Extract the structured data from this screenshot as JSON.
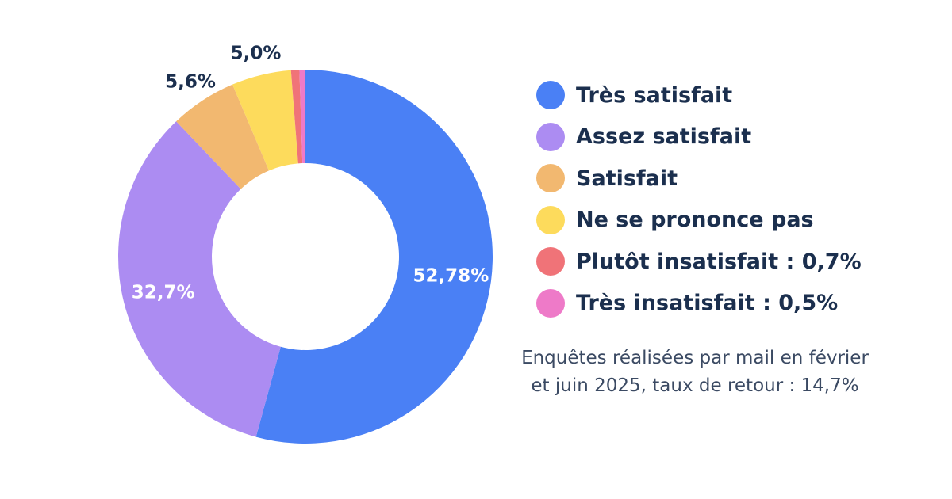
{
  "chart_data": {
    "type": "pie",
    "variant": "donut",
    "title": "",
    "slices": [
      {
        "label": "Très satisfait",
        "value": 52.78,
        "data_label": "52,78%",
        "color": "#4a80f5",
        "label_text_color": "#ffffff"
      },
      {
        "label": "Assez satisfait",
        "value": 32.7,
        "data_label": "32,7%",
        "color": "#ac8cf2",
        "label_text_color": "#ffffff"
      },
      {
        "label": "Satisfait",
        "value": 5.6,
        "data_label": "5,6%",
        "color": "#f2b870",
        "label_text_color": "#1b2f4e"
      },
      {
        "label": "Ne se prononce pas",
        "value": 5.0,
        "data_label": "5,0%",
        "color": "#fddb5c",
        "label_text_color": "#1b2f4e"
      },
      {
        "label": "Plutôt insatisfait : 0,7%",
        "value": 0.7,
        "data_label": "",
        "color": "#f07378",
        "label_text_color": "#1b2f4e"
      },
      {
        "label": "Très insatisfait : 0,5%",
        "value": 0.5,
        "data_label": "",
        "color": "#ee7ac8",
        "label_text_color": "#1b2f4e"
      }
    ],
    "legend_position": "right"
  },
  "note": {
    "line1": "Enquêtes réalisées par mail en février",
    "line2": "et juin 2025, taux de retour : 14,7%"
  }
}
